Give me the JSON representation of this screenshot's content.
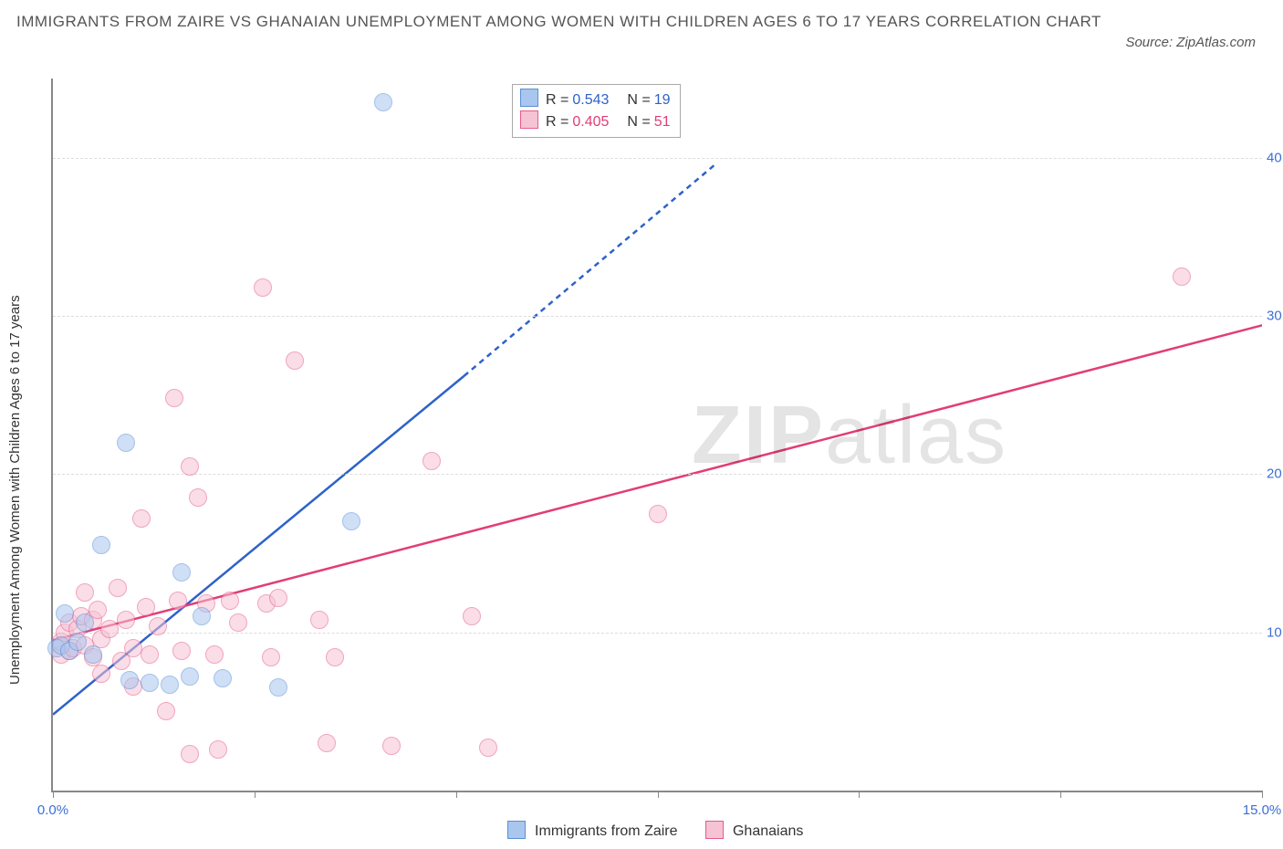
{
  "title": "IMMIGRANTS FROM ZAIRE VS GHANAIAN UNEMPLOYMENT AMONG WOMEN WITH CHILDREN AGES 6 TO 17 YEARS CORRELATION CHART",
  "source_text": "Source: ZipAtlas.com",
  "y_axis_label": "Unemployment Among Women with Children Ages 6 to 17 years",
  "watermark_bold": "ZIP",
  "watermark_light": "atlas",
  "chart": {
    "type": "scatter",
    "background_color": "#ffffff",
    "grid_color": "#dddddd",
    "axis_color": "#888888",
    "label_color": "#333333",
    "tick_label_color": "#3b6fd6",
    "xlim": [
      0,
      15
    ],
    "ylim": [
      0,
      45
    ],
    "x_ticks": [
      0,
      2.5,
      5,
      7.5,
      10,
      12.5,
      15
    ],
    "x_tick_labels": {
      "0": "0.0%",
      "15": "15.0%"
    },
    "y_ticks": [
      10,
      20,
      30,
      40
    ],
    "y_tick_labels": {
      "10": "10.0%",
      "20": "20.0%",
      "30": "30.0%",
      "40": "40.0%"
    },
    "marker_radius": 9,
    "marker_opacity": 0.55,
    "marker_stroke_width": 1.2
  },
  "series": {
    "blue": {
      "label": "Immigrants from Zaire",
      "fill": "#a9c6ef",
      "stroke": "#5a8fd6",
      "line_color": "#2e62c9",
      "R": "0.543",
      "N": "19",
      "trend": {
        "x1": 0,
        "y1": 4.8,
        "x2_solid": 5.1,
        "y2_solid": 26.2,
        "x2_dash": 8.2,
        "y2_dash": 39.5
      },
      "points": [
        [
          0.05,
          9.0
        ],
        [
          0.1,
          9.2
        ],
        [
          0.2,
          8.8
        ],
        [
          0.15,
          11.2
        ],
        [
          0.4,
          10.6
        ],
        [
          0.6,
          15.5
        ],
        [
          0.9,
          22.0
        ],
        [
          0.95,
          7.0
        ],
        [
          1.2,
          6.8
        ],
        [
          1.6,
          13.8
        ],
        [
          1.7,
          7.2
        ],
        [
          1.85,
          11.0
        ],
        [
          2.1,
          7.1
        ],
        [
          2.8,
          6.5
        ],
        [
          3.7,
          17.0
        ],
        [
          4.1,
          43.5
        ],
        [
          1.45,
          6.7
        ],
        [
          0.3,
          9.4
        ],
        [
          0.5,
          8.6
        ]
      ]
    },
    "pink": {
      "label": "Ghanaians",
      "fill": "#f6c3d4",
      "stroke": "#e65a8a",
      "line_color": "#e23d76",
      "R": "0.405",
      "N": "51",
      "trend": {
        "x1": 0,
        "y1": 9.5,
        "x2_solid": 15.3,
        "y2_solid": 29.8
      },
      "points": [
        [
          0.1,
          8.6
        ],
        [
          0.1,
          9.4
        ],
        [
          0.15,
          10.0
        ],
        [
          0.2,
          8.8
        ],
        [
          0.2,
          10.6
        ],
        [
          0.25,
          9.0
        ],
        [
          0.3,
          10.2
        ],
        [
          0.35,
          11.0
        ],
        [
          0.4,
          9.2
        ],
        [
          0.4,
          12.5
        ],
        [
          0.5,
          10.8
        ],
        [
          0.5,
          8.4
        ],
        [
          0.55,
          11.4
        ],
        [
          0.6,
          9.6
        ],
        [
          0.7,
          10.2
        ],
        [
          0.8,
          12.8
        ],
        [
          0.85,
          8.2
        ],
        [
          0.9,
          10.8
        ],
        [
          1.0,
          9.0
        ],
        [
          1.1,
          17.2
        ],
        [
          1.15,
          11.6
        ],
        [
          1.2,
          8.6
        ],
        [
          1.3,
          10.4
        ],
        [
          1.4,
          5.0
        ],
        [
          1.5,
          24.8
        ],
        [
          1.55,
          12.0
        ],
        [
          1.6,
          8.8
        ],
        [
          1.7,
          2.3
        ],
        [
          1.7,
          20.5
        ],
        [
          1.8,
          18.5
        ],
        [
          1.9,
          11.8
        ],
        [
          2.0,
          8.6
        ],
        [
          2.05,
          2.6
        ],
        [
          2.2,
          12.0
        ],
        [
          2.3,
          10.6
        ],
        [
          2.6,
          31.8
        ],
        [
          2.65,
          11.8
        ],
        [
          2.7,
          8.4
        ],
        [
          2.8,
          12.2
        ],
        [
          3.0,
          27.2
        ],
        [
          3.3,
          10.8
        ],
        [
          3.4,
          3.0
        ],
        [
          3.5,
          8.4
        ],
        [
          4.2,
          2.8
        ],
        [
          4.7,
          20.8
        ],
        [
          5.2,
          11.0
        ],
        [
          5.4,
          2.7
        ],
        [
          7.5,
          17.5
        ],
        [
          14.0,
          32.5
        ],
        [
          0.6,
          7.4
        ],
        [
          1.0,
          6.6
        ]
      ]
    }
  },
  "legend_bottom": [
    {
      "swatch_fill": "#a9c6ef",
      "swatch_stroke": "#5a8fd6",
      "text": "Immigrants from Zaire"
    },
    {
      "swatch_fill": "#f6c3d4",
      "swatch_stroke": "#e65a8a",
      "text": "Ghanaians"
    }
  ]
}
